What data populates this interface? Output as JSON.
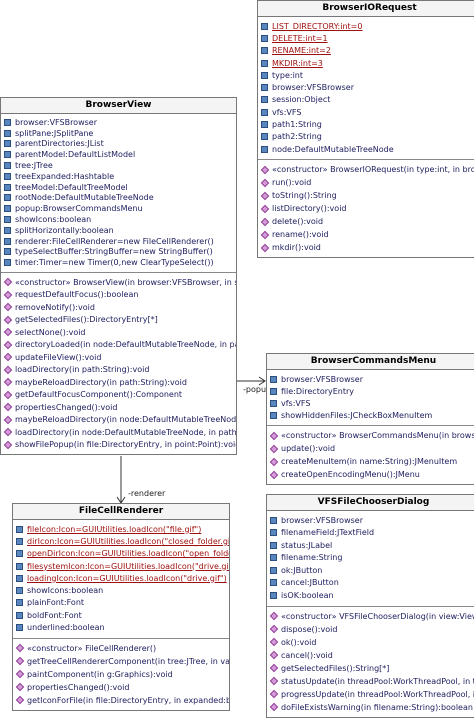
{
  "classes": [
    {
      "name": "BrowserIORequest",
      "attributes": [
        {
          "text": "LIST_DIRECTORY:int=0",
          "static": true
        },
        {
          "text": "DELETE:int=1",
          "static": true
        },
        {
          "text": "RENAME:int=2",
          "static": true
        },
        {
          "text": "MKDIR:int=3",
          "static": true
        },
        {
          "text": "type:int"
        },
        {
          "text": "browser:VFSBrowser"
        },
        {
          "text": "session:Object"
        },
        {
          "text": "vfs:VFS"
        },
        {
          "text": "path1:String"
        },
        {
          "text": "path2:String"
        },
        {
          "text": "node:DefaultMutableTreeNode"
        }
      ],
      "operations": [
        "«constructor» BrowserIORequest(in type:int, in browser:VFSBrowser",
        "run():void",
        "toString():String",
        "listDirectory():void",
        "delete():void",
        "rename():void",
        "mkdir():void"
      ]
    },
    {
      "name": "BrowserView",
      "attributes": [
        {
          "text": "browser:VFSBrowser"
        },
        {
          "text": "splitPane:JSplitPane"
        },
        {
          "text": "parentDirectories:JList"
        },
        {
          "text": "parentModel:DefaultListModel"
        },
        {
          "text": "tree:JTree"
        },
        {
          "text": "treeExpanded:Hashtable"
        },
        {
          "text": "treeModel:DefaultTreeModel"
        },
        {
          "text": "rootNode:DefaultMutableTreeNode"
        },
        {
          "text": "popup:BrowserCommandsMenu"
        },
        {
          "text": "showIcons:boolean"
        },
        {
          "text": "splitHorizontally:boolean"
        },
        {
          "text": "renderer:FileCellRenderer=new FileCellRenderer()"
        },
        {
          "text": "typeSelectBuffer:StringBuffer=new StringBuffer()"
        },
        {
          "text": "timer:Timer=new Timer(0,new ClearTypeSelect())"
        }
      ],
      "operations": [
        "«constructor» BrowserView(in browser:VFSBrowser, in splitHorizontally:boolean)",
        "requestDefaultFocus():boolean",
        "removeNotify():void",
        "getSelectedFiles():DirectoryEntry[*]",
        "selectNone():void",
        "directoryLoaded(in node:DefaultMutableTreeNode, in path:String",
        "updateFileView():void",
        "loadDirectory(in path:String):void",
        "maybeReloadDirectory(in path:String):void",
        "getDefaultFocusComponent():Component",
        "propertiesChanged():void",
        "maybeReloadDirectory(in node:DefaultMutableTreeNode, in path:String",
        "loadDirectory(in node:DefaultMutableTreeNode, in path:String, in add",
        "showFilePopup(in file:DirectoryEntry, in point:Point):void"
      ]
    },
    {
      "name": "BrowserCommandsMenu",
      "attributes": [
        {
          "text": "browser:VFSBrowser"
        },
        {
          "text": "file:DirectoryEntry"
        },
        {
          "text": "vfs:VFS"
        },
        {
          "text": "showHiddenFiles:JCheckBoxMenuItem"
        }
      ],
      "operations": [
        "«constructor» BrowserCommandsMenu(in browser:VFSBrowser",
        "update():void",
        "createMenuItem(in name:String):JMenuItem",
        "createOpenEncodingMenu():JMenu"
      ]
    },
    {
      "name": "FileCellRenderer",
      "attributes": [
        {
          "text": "fileIcon:Icon=GUIUtilities.loadIcon(\"file.gif\")",
          "static": true
        },
        {
          "text": "dirIcon:Icon=GUIUtilities.loadIcon(\"closed_folder.gif\")",
          "static": true
        },
        {
          "text": "openDirIcon:Icon=GUIUtilities.loadIcon(\"open_folder.gif\")",
          "static": true
        },
        {
          "text": "filesystemIcon:Icon=GUIUtilities.loadIcon(\"drive.gif\")",
          "static": true
        },
        {
          "text": "loadingIcon:Icon=GUIUtilities.loadIcon(\"drive.gif\")",
          "static": true
        },
        {
          "text": "showIcons:boolean"
        },
        {
          "text": "plainFont:Font"
        },
        {
          "text": "boldFont:Font"
        },
        {
          "text": "underlined:boolean"
        }
      ],
      "operations": [
        "«constructor» FileCellRenderer()",
        "getTreeCellRendererComponent(in tree:JTree, in value:Object",
        "paintComponent(in g:Graphics):void",
        "propertiesChanged():void",
        "getIconForFile(in file:DirectoryEntry, in expanded:boolean):Icon"
      ]
    },
    {
      "name": "VFSFileChooserDialog",
      "attributes": [
        {
          "text": "browser:VFSBrowser"
        },
        {
          "text": "filenameField:JTextField"
        },
        {
          "text": "status:JLabel"
        },
        {
          "text": "filename:String"
        },
        {
          "text": "ok:JButton"
        },
        {
          "text": "cancel:JButton"
        },
        {
          "text": "isOK:boolean"
        }
      ],
      "operations": [
        "«constructor» VFSFileChooserDialog(in view:View, in path:String",
        "dispose():void",
        "ok():void",
        "cancel():void",
        "getSelectedFiles():String[*]",
        "statusUpdate(in threadPool:WorkThreadPool, in thread:int",
        "progressUpdate(in threadPool:WorkThreadPool, in thread:int",
        "doFileExistsWarning(in filename:String):boolean"
      ]
    }
  ],
  "edges": [
    {
      "label": "-popup"
    },
    {
      "label": "-renderer"
    }
  ]
}
